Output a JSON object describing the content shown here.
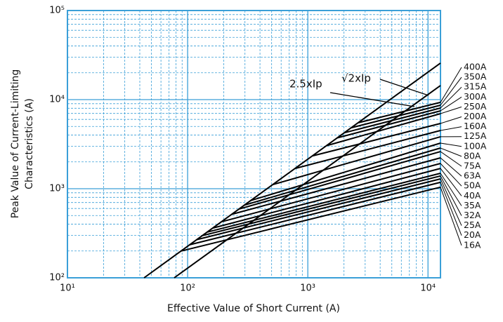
{
  "chart_data": {
    "type": "line",
    "xlabel": "Effective Value of Short Current (A)",
    "ylabel": [
      "Peak Value of Current-Limiting",
      "Characteristics (A)"
    ],
    "log_x": true,
    "log_y": true,
    "grid": true,
    "grid_color": "#3a9fd8",
    "xlim": [
      10,
      12700
    ],
    "ylim": [
      100,
      100000
    ],
    "xticks": [
      {
        "value": 10,
        "label": "10¹"
      },
      {
        "value": 100,
        "label": "10²"
      },
      {
        "value": 1000,
        "label": "10³"
      },
      {
        "value": 10000,
        "label": "10⁴"
      }
    ],
    "yticks": [
      {
        "value": 100,
        "label": "10²"
      },
      {
        "value": 1000,
        "label": "10³"
      },
      {
        "value": 10000,
        "label": "10⁴"
      },
      {
        "value": 100000,
        "label": "10⁵"
      }
    ],
    "series": [
      {
        "name": "2.5xIp",
        "color": "#000000",
        "x": [
          43.4,
          12700
        ],
        "values": [
          100,
          25700
        ]
      },
      {
        "name": "√2xIp",
        "color": "#000000",
        "x": [
          77.4,
          12700
        ],
        "values": [
          100,
          14400
        ]
      },
      {
        "name": "400A",
        "color": "#000000",
        "x": [
          2640,
          12700
        ],
        "values": [
          5510,
          9310
        ]
      },
      {
        "name": "350A",
        "color": "#000000",
        "x": [
          2300,
          12700
        ],
        "values": [
          4830,
          8650
        ]
      },
      {
        "name": "315A",
        "color": "#000000",
        "x": [
          2010,
          12700
        ],
        "values": [
          4240,
          8050
        ]
      },
      {
        "name": "300A",
        "color": "#000000",
        "x": [
          1760,
          12700
        ],
        "values": [
          3720,
          7480
        ]
      },
      {
        "name": "250A",
        "color": "#000000",
        "x": [
          1440,
          12700
        ],
        "values": [
          3050,
          6960
        ]
      },
      {
        "name": "200A",
        "color": "#000000",
        "x": [
          1100,
          12700
        ],
        "values": [
          2340,
          5400
        ]
      },
      {
        "name": "160A",
        "color": "#000000",
        "x": [
          785,
          12700
        ],
        "values": [
          1690,
          4500
        ]
      },
      {
        "name": "125A",
        "color": "#000000",
        "x": [
          510,
          12700
        ],
        "values": [
          1110,
          3830
        ]
      },
      {
        "name": "100A",
        "color": "#000000",
        "x": [
          336,
          12700
        ],
        "values": [
          738,
          3250
        ]
      },
      {
        "name": "80A",
        "color": "#000000",
        "x": [
          298,
          12700
        ],
        "values": [
          656,
          2860
        ]
      },
      {
        "name": "75A",
        "color": "#000000",
        "x": [
          267,
          12700
        ],
        "values": [
          590,
          2610
        ]
      },
      {
        "name": "63A",
        "color": "#000000",
        "x": [
          233,
          12700
        ],
        "values": [
          516,
          2220
        ]
      },
      {
        "name": "50A",
        "color": "#000000",
        "x": [
          191,
          12700
        ],
        "values": [
          425,
          1920
        ]
      },
      {
        "name": "40A",
        "color": "#000000",
        "x": [
          163,
          12700
        ],
        "values": [
          362,
          1690
        ]
      },
      {
        "name": "35A",
        "color": "#000000",
        "x": [
          146,
          12700
        ],
        "values": [
          326,
          1490
        ]
      },
      {
        "name": "32A",
        "color": "#000000",
        "x": [
          133,
          12700
        ],
        "values": [
          298,
          1390
        ]
      },
      {
        "name": "25A",
        "color": "#000000",
        "x": [
          119,
          12700
        ],
        "values": [
          268,
          1290
        ]
      },
      {
        "name": "20A",
        "color": "#000000",
        "x": [
          104,
          12700
        ],
        "values": [
          235,
          1180
        ]
      },
      {
        "name": "16A",
        "color": "#000000",
        "x": [
          88.5,
          12700
        ],
        "values": [
          200,
          1040
        ]
      }
    ]
  }
}
